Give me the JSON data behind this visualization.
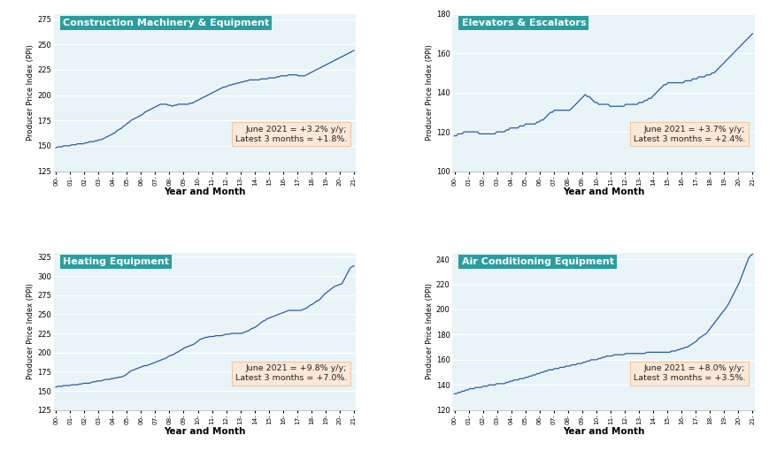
{
  "panels": [
    {
      "title": "Construction Machinery & Equipment",
      "annotation": "June 2021 = +3.2% y/y;\nLatest 3 months = +1.8%.",
      "ylim": [
        125,
        280
      ],
      "yticks": [
        125,
        150,
        175,
        200,
        225,
        250,
        275
      ],
      "data": [
        148,
        149,
        149,
        149,
        150,
        150,
        150,
        150,
        151,
        151,
        151,
        152,
        152,
        152,
        152,
        153,
        153,
        154,
        154,
        154,
        155,
        155,
        156,
        156,
        157,
        158,
        159,
        160,
        161,
        162,
        163,
        165,
        166,
        167,
        169,
        170,
        172,
        173,
        175,
        176,
        177,
        178,
        179,
        180,
        181,
        183,
        184,
        185,
        186,
        187,
        188,
        189,
        190,
        191,
        191,
        191,
        191,
        190,
        190,
        189,
        190,
        190,
        191,
        191,
        191,
        191,
        191,
        191,
        192,
        192,
        193,
        194,
        195,
        196,
        197,
        198,
        199,
        200,
        201,
        202,
        203,
        204,
        205,
        206,
        207,
        208,
        208,
        209,
        210,
        210,
        211,
        211,
        212,
        212,
        213,
        213,
        214,
        214,
        215,
        215,
        215,
        215,
        215,
        215,
        216,
        216,
        216,
        216,
        217,
        217,
        217,
        217,
        218,
        218,
        219,
        219,
        219,
        219,
        220,
        220,
        220,
        220,
        220,
        219,
        219,
        219,
        219,
        220,
        221,
        222,
        223,
        224,
        225,
        226,
        227,
        228,
        229,
        230,
        231,
        232,
        233,
        234,
        235,
        236,
        237,
        238,
        239,
        240,
        241,
        242,
        243,
        244
      ]
    },
    {
      "title": "Elevators & Escalators",
      "annotation": "June 2021 = +3.7% y/y;\nLatest 3 months = +2.4%.",
      "ylim": [
        100,
        180
      ],
      "yticks": [
        100,
        120,
        140,
        160,
        180
      ],
      "data": [
        118,
        118,
        119,
        119,
        119,
        120,
        120,
        120,
        120,
        120,
        120,
        120,
        120,
        119,
        119,
        119,
        119,
        119,
        119,
        119,
        119,
        119,
        120,
        120,
        120,
        120,
        120,
        121,
        121,
        122,
        122,
        122,
        122,
        122,
        123,
        123,
        123,
        124,
        124,
        124,
        124,
        124,
        124,
        125,
        125,
        126,
        126,
        127,
        128,
        129,
        130,
        130,
        131,
        131,
        131,
        131,
        131,
        131,
        131,
        131,
        131,
        132,
        133,
        134,
        135,
        136,
        137,
        138,
        139,
        138,
        138,
        137,
        136,
        135,
        135,
        134,
        134,
        134,
        134,
        134,
        134,
        133,
        133,
        133,
        133,
        133,
        133,
        133,
        133,
        134,
        134,
        134,
        134,
        134,
        134,
        134,
        135,
        135,
        135,
        136,
        136,
        137,
        137,
        138,
        139,
        140,
        141,
        142,
        143,
        144,
        144,
        145,
        145,
        145,
        145,
        145,
        145,
        145,
        145,
        145,
        146,
        146,
        146,
        146,
        147,
        147,
        147,
        148,
        148,
        148,
        148,
        149,
        149,
        149,
        150,
        150,
        151,
        152,
        153,
        154,
        155,
        156,
        157,
        158,
        159,
        160,
        161,
        162,
        163,
        164,
        165,
        166,
        167,
        168,
        169,
        170
      ]
    },
    {
      "title": "Heating Equipment",
      "annotation": "June 2021 = +9.8% y/y;\nLatest 3 months = +7.0%.",
      "ylim": [
        125,
        330
      ],
      "yticks": [
        125,
        150,
        175,
        200,
        225,
        250,
        275,
        300,
        325
      ],
      "data": [
        155,
        156,
        156,
        156,
        157,
        157,
        157,
        157,
        158,
        158,
        158,
        158,
        159,
        159,
        160,
        160,
        160,
        160,
        161,
        162,
        162,
        163,
        163,
        163,
        164,
        165,
        165,
        165,
        166,
        166,
        167,
        167,
        168,
        168,
        169,
        170,
        172,
        174,
        176,
        177,
        178,
        179,
        180,
        181,
        182,
        183,
        183,
        184,
        185,
        186,
        187,
        188,
        189,
        190,
        191,
        192,
        193,
        195,
        196,
        197,
        198,
        200,
        201,
        203,
        204,
        206,
        207,
        208,
        209,
        210,
        211,
        213,
        215,
        217,
        218,
        219,
        220,
        220,
        221,
        221,
        221,
        222,
        222,
        222,
        222,
        223,
        224,
        224,
        224,
        225,
        225,
        225,
        225,
        225,
        225,
        226,
        227,
        228,
        229,
        231,
        232,
        233,
        235,
        237,
        239,
        241,
        242,
        244,
        245,
        246,
        247,
        248,
        249,
        250,
        251,
        252,
        253,
        254,
        255,
        255,
        255,
        255,
        255,
        255,
        255,
        256,
        257,
        258,
        260,
        262,
        263,
        265,
        267,
        268,
        270,
        273,
        276,
        278,
        280,
        282,
        284,
        286,
        287,
        288,
        289,
        290,
        295,
        300,
        305,
        310,
        312,
        313
      ]
    },
    {
      "title": "Air Conditioning Equipment",
      "annotation": "June 2021 = +8.0% y/y;\nLatest 3 months = +3.5%.",
      "ylim": [
        120,
        245
      ],
      "yticks": [
        120,
        140,
        160,
        180,
        200,
        220,
        240
      ],
      "data": [
        133,
        133,
        134,
        134,
        135,
        135,
        136,
        136,
        137,
        137,
        137,
        138,
        138,
        138,
        138,
        139,
        139,
        139,
        140,
        140,
        140,
        140,
        141,
        141,
        141,
        141,
        141,
        142,
        142,
        143,
        143,
        144,
        144,
        144,
        145,
        145,
        145,
        146,
        146,
        147,
        147,
        148,
        148,
        149,
        149,
        150,
        150,
        151,
        151,
        152,
        152,
        152,
        153,
        153,
        153,
        154,
        154,
        154,
        155,
        155,
        155,
        156,
        156,
        156,
        157,
        157,
        157,
        158,
        158,
        159,
        159,
        160,
        160,
        160,
        160,
        161,
        161,
        162,
        162,
        163,
        163,
        163,
        163,
        164,
        164,
        164,
        164,
        164,
        164,
        165,
        165,
        165,
        165,
        165,
        165,
        165,
        165,
        165,
        165,
        165,
        166,
        166,
        166,
        166,
        166,
        166,
        166,
        166,
        166,
        166,
        166,
        166,
        166,
        167,
        167,
        167,
        168,
        168,
        169,
        169,
        170,
        170,
        171,
        172,
        173,
        174,
        175,
        177,
        178,
        179,
        180,
        181,
        183,
        185,
        187,
        189,
        191,
        193,
        195,
        197,
        199,
        201,
        203,
        206,
        209,
        212,
        215,
        218,
        221,
        225,
        229,
        233,
        237,
        241,
        243,
        244
      ]
    }
  ],
  "x_labels": [
    "00-",
    "01-",
    "02-",
    "03-",
    "04-",
    "05-",
    "06-",
    "07-",
    "08-",
    "09-",
    "10-",
    "11-",
    "12-",
    "13-",
    "14-",
    "15-",
    "16-",
    "17-",
    "18-",
    "19-",
    "20-",
    "21-"
  ],
  "line_color": "#2b5b9e",
  "bg_color": "#e8f4f8",
  "annotation_bg": "#fce8d8",
  "annotation_border": "#f0c8a0",
  "title_bg": "#2a9d9f",
  "title_color": "white",
  "ylabel": "Producer Price Index (PPI)",
  "xlabel": "Year and Month"
}
